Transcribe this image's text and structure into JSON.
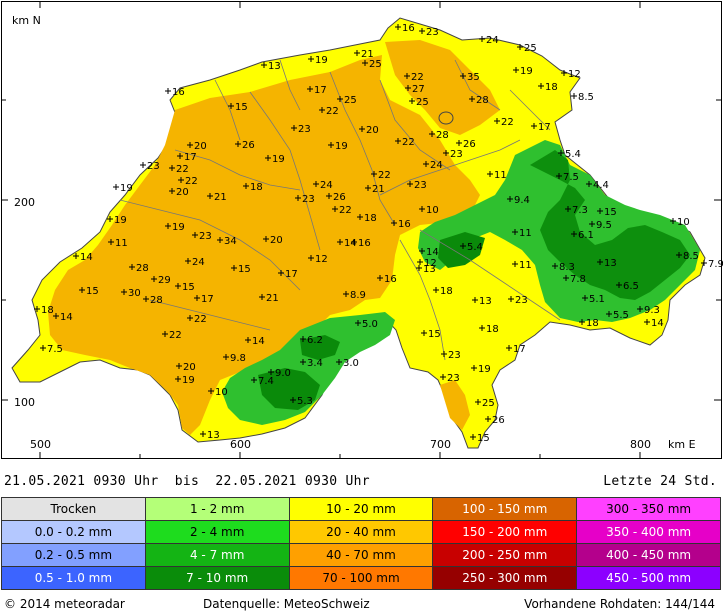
{
  "map": {
    "axis_north_label": "km N",
    "axis_east_label": "km E",
    "y_ticks": [
      "200",
      "100"
    ],
    "x_ticks": [
      "500",
      "600",
      "700",
      "800"
    ],
    "colors": {
      "yellow": "#ffff00",
      "orange": "#f5b400",
      "lightgreen": "#2fc02f",
      "darkgreen": "#0a8a0a",
      "border": "#666666"
    },
    "labels": [
      {
        "t": "16",
        "x": 402,
        "y": 31
      },
      {
        "t": "23",
        "x": 426,
        "y": 35
      },
      {
        "t": "24",
        "x": 486,
        "y": 43
      },
      {
        "t": "25",
        "x": 524,
        "y": 51
      },
      {
        "t": "21",
        "x": 361,
        "y": 57
      },
      {
        "t": "19",
        "x": 315,
        "y": 63
      },
      {
        "t": "13",
        "x": 268,
        "y": 69
      },
      {
        "t": "25",
        "x": 369,
        "y": 67
      },
      {
        "t": "19",
        "x": 520,
        "y": 74
      },
      {
        "t": "12",
        "x": 568,
        "y": 77
      },
      {
        "t": "22",
        "x": 411,
        "y": 80
      },
      {
        "t": "35",
        "x": 467,
        "y": 80
      },
      {
        "t": "27",
        "x": 412,
        "y": 92
      },
      {
        "t": "18",
        "x": 545,
        "y": 90
      },
      {
        "t": "16",
        "x": 172,
        "y": 95
      },
      {
        "t": "17",
        "x": 314,
        "y": 93
      },
      {
        "t": "8.5",
        "x": 578,
        "y": 100
      },
      {
        "t": "25",
        "x": 416,
        "y": 105
      },
      {
        "t": "28",
        "x": 476,
        "y": 103
      },
      {
        "t": "25",
        "x": 344,
        "y": 103
      },
      {
        "t": "15",
        "x": 235,
        "y": 110
      },
      {
        "t": "22",
        "x": 326,
        "y": 114
      },
      {
        "t": "22",
        "x": 501,
        "y": 125
      },
      {
        "t": "17",
        "x": 538,
        "y": 130
      },
      {
        "t": "23",
        "x": 298,
        "y": 132
      },
      {
        "t": "20",
        "x": 366,
        "y": 133
      },
      {
        "t": "28",
        "x": 436,
        "y": 138
      },
      {
        "t": "26",
        "x": 463,
        "y": 147
      },
      {
        "t": "22",
        "x": 402,
        "y": 145
      },
      {
        "t": "26",
        "x": 242,
        "y": 148
      },
      {
        "t": "19",
        "x": 335,
        "y": 149
      },
      {
        "t": "20",
        "x": 194,
        "y": 149
      },
      {
        "t": "17",
        "x": 184,
        "y": 160
      },
      {
        "t": "23",
        "x": 450,
        "y": 157
      },
      {
        "t": "19",
        "x": 272,
        "y": 162
      },
      {
        "t": "5.4",
        "x": 565,
        "y": 157
      },
      {
        "t": "23",
        "x": 147,
        "y": 169
      },
      {
        "t": "22",
        "x": 176,
        "y": 172
      },
      {
        "t": "24",
        "x": 430,
        "y": 168
      },
      {
        "t": "11",
        "x": 494,
        "y": 178
      },
      {
        "t": "7.5",
        "x": 563,
        "y": 180
      },
      {
        "t": "22",
        "x": 185,
        "y": 184
      },
      {
        "t": "22",
        "x": 378,
        "y": 178
      },
      {
        "t": "4.4",
        "x": 593,
        "y": 188
      },
      {
        "t": "24",
        "x": 320,
        "y": 188
      },
      {
        "t": "19",
        "x": 120,
        "y": 191
      },
      {
        "t": "20",
        "x": 176,
        "y": 195
      },
      {
        "t": "18",
        "x": 250,
        "y": 190
      },
      {
        "t": "21",
        "x": 372,
        "y": 192
      },
      {
        "t": "23",
        "x": 414,
        "y": 188
      },
      {
        "t": "23",
        "x": 302,
        "y": 202
      },
      {
        "t": "26",
        "x": 333,
        "y": 200
      },
      {
        "t": "21",
        "x": 214,
        "y": 200
      },
      {
        "t": "9.4",
        "x": 514,
        "y": 203
      },
      {
        "t": "22",
        "x": 339,
        "y": 213
      },
      {
        "t": "10",
        "x": 426,
        "y": 213
      },
      {
        "t": "7.3",
        "x": 572,
        "y": 213
      },
      {
        "t": "15",
        "x": 604,
        "y": 215
      },
      {
        "t": "19",
        "x": 114,
        "y": 223
      },
      {
        "t": "18",
        "x": 364,
        "y": 221
      },
      {
        "t": "16",
        "x": 398,
        "y": 227
      },
      {
        "t": "9.5",
        "x": 596,
        "y": 228
      },
      {
        "t": "10",
        "x": 677,
        "y": 225
      },
      {
        "t": "19",
        "x": 172,
        "y": 230
      },
      {
        "t": "6.1",
        "x": 578,
        "y": 238
      },
      {
        "t": "23",
        "x": 199,
        "y": 239
      },
      {
        "t": "34",
        "x": 224,
        "y": 244
      },
      {
        "t": "20",
        "x": 270,
        "y": 243
      },
      {
        "t": "11",
        "x": 519,
        "y": 236
      },
      {
        "t": "14",
        "x": 344,
        "y": 246
      },
      {
        "t": "16",
        "x": 358,
        "y": 246
      },
      {
        "t": "11",
        "x": 115,
        "y": 246
      },
      {
        "t": "5.4",
        "x": 467,
        "y": 250
      },
      {
        "t": "14",
        "x": 426,
        "y": 255
      },
      {
        "t": "8.5",
        "x": 683,
        "y": 259
      },
      {
        "t": "7.9",
        "x": 708,
        "y": 267
      },
      {
        "t": "14",
        "x": 80,
        "y": 260
      },
      {
        "t": "12",
        "x": 315,
        "y": 262
      },
      {
        "t": "12",
        "x": 424,
        "y": 266
      },
      {
        "t": "11",
        "x": 519,
        "y": 268
      },
      {
        "t": "13",
        "x": 604,
        "y": 266
      },
      {
        "t": "8.3",
        "x": 559,
        "y": 270
      },
      {
        "t": "28",
        "x": 136,
        "y": 271
      },
      {
        "t": "24",
        "x": 192,
        "y": 265
      },
      {
        "t": "15",
        "x": 238,
        "y": 272
      },
      {
        "t": "17",
        "x": 285,
        "y": 277
      },
      {
        "t": "13",
        "x": 423,
        "y": 272
      },
      {
        "t": "7.8",
        "x": 570,
        "y": 282
      },
      {
        "t": "29",
        "x": 158,
        "y": 283
      },
      {
        "t": "16",
        "x": 384,
        "y": 282
      },
      {
        "t": "6.5",
        "x": 623,
        "y": 289
      },
      {
        "t": "15",
        "x": 86,
        "y": 294
      },
      {
        "t": "30",
        "x": 128,
        "y": 296
      },
      {
        "t": "15",
        "x": 182,
        "y": 290
      },
      {
        "t": "18",
        "x": 440,
        "y": 294
      },
      {
        "t": "8.9",
        "x": 350,
        "y": 298
      },
      {
        "t": "21",
        "x": 266,
        "y": 301
      },
      {
        "t": "5.1",
        "x": 589,
        "y": 302
      },
      {
        "t": "13",
        "x": 479,
        "y": 304
      },
      {
        "t": "23",
        "x": 515,
        "y": 303
      },
      {
        "t": "28",
        "x": 150,
        "y": 303
      },
      {
        "t": "17",
        "x": 201,
        "y": 302
      },
      {
        "t": "9.3",
        "x": 644,
        "y": 313
      },
      {
        "t": "5.5",
        "x": 613,
        "y": 318
      },
      {
        "t": "18",
        "x": 41,
        "y": 313
      },
      {
        "t": "14",
        "x": 60,
        "y": 320
      },
      {
        "t": "22",
        "x": 194,
        "y": 322
      },
      {
        "t": "14",
        "x": 651,
        "y": 326
      },
      {
        "t": "18",
        "x": 586,
        "y": 326
      },
      {
        "t": "5.0",
        "x": 362,
        "y": 327
      },
      {
        "t": "18",
        "x": 486,
        "y": 332
      },
      {
        "t": "15",
        "x": 428,
        "y": 337
      },
      {
        "t": "22",
        "x": 169,
        "y": 338
      },
      {
        "t": "6.2",
        "x": 307,
        "y": 343
      },
      {
        "t": "14",
        "x": 252,
        "y": 344
      },
      {
        "t": "7.5",
        "x": 47,
        "y": 352
      },
      {
        "t": "17",
        "x": 513,
        "y": 352
      },
      {
        "t": "23",
        "x": 448,
        "y": 358
      },
      {
        "t": "9.8",
        "x": 230,
        "y": 361
      },
      {
        "t": "3.4",
        "x": 307,
        "y": 366
      },
      {
        "t": "3.0",
        "x": 343,
        "y": 366
      },
      {
        "t": "20",
        "x": 183,
        "y": 370
      },
      {
        "t": "19",
        "x": 478,
        "y": 372
      },
      {
        "t": "9.0",
        "x": 275,
        "y": 376
      },
      {
        "t": "23",
        "x": 447,
        "y": 381
      },
      {
        "t": "19",
        "x": 182,
        "y": 383
      },
      {
        "t": "7.4",
        "x": 258,
        "y": 384
      },
      {
        "t": "10",
        "x": 215,
        "y": 395
      },
      {
        "t": "5.3",
        "x": 297,
        "y": 404
      },
      {
        "t": "25",
        "x": 482,
        "y": 406
      },
      {
        "t": "26",
        "x": 492,
        "y": 423
      },
      {
        "t": "13",
        "x": 207,
        "y": 438
      },
      {
        "t": "15",
        "x": 477,
        "y": 441
      }
    ]
  },
  "period": {
    "from_date": "21.05.2021",
    "from_time": "0930",
    "unit": "Uhr",
    "separator": "bis",
    "to_date": "22.05.2021",
    "to_time": "0930"
  },
  "window_label": "Letzte 24 Std.",
  "legend": {
    "rows": [
      [
        {
          "label": "Trocken",
          "color": "#e3e3e3"
        },
        {
          "label": "1 - 2 mm",
          "color": "#b4ff78"
        },
        {
          "label": "10 - 20 mm",
          "color": "#ffff00"
        },
        {
          "label": "100 - 150 mm",
          "color": "#d86400"
        },
        {
          "label": "300 - 350 mm",
          "color": "#ff40ff"
        }
      ],
      [
        {
          "label": "0.0 - 0.2 mm",
          "color": "#b4c8ff"
        },
        {
          "label": "2 - 4 mm",
          "color": "#1edc1e"
        },
        {
          "label": "20 - 40 mm",
          "color": "#ffc800"
        },
        {
          "label": "150 - 200 mm",
          "color": "#ff0000"
        },
        {
          "label": "350 - 400 mm",
          "color": "#e600c8"
        }
      ],
      [
        {
          "label": "0.2 - 0.5 mm",
          "color": "#82a0ff"
        },
        {
          "label": "4 - 7 mm",
          "color": "#14b414"
        },
        {
          "label": "40 - 70 mm",
          "color": "#ffa000"
        },
        {
          "label": "200 - 250 mm",
          "color": "#c80000"
        },
        {
          "label": "400 - 450 mm",
          "color": "#b4008c"
        }
      ],
      [
        {
          "label": "0.5 - 1.0 mm",
          "color": "#3c64ff"
        },
        {
          "label": "7 - 10 mm",
          "color": "#0a8c0a"
        },
        {
          "label": "70 - 100 mm",
          "color": "#ff7800"
        },
        {
          "label": "250 - 300 mm",
          "color": "#960000"
        },
        {
          "label": "450 - 500 mm",
          "color": "#8c00ff"
        }
      ]
    ]
  },
  "footer": {
    "copyright": "© 2014 meteoradar",
    "source": "Datenquelle: MeteoSchweiz",
    "raw_data": "Vorhandene Rohdaten: 144/144"
  }
}
